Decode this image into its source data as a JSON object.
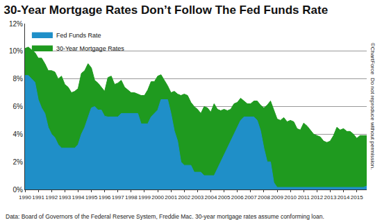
{
  "chart_data": {
    "type": "area",
    "title": "30-Year Mortgage Rates Don’t Follow The Fed Funds Rate",
    "annotations": [
      "Data: Board of Governors of the Federal Reserve System, Freddie Mac. 30-year mortgage rates assume conforming loan.",
      "©ChartForce  Do not reproduce without permission."
    ],
    "x": [
      1990,
      1990.25,
      1990.5,
      1990.75,
      1991,
      1991.25,
      1991.5,
      1991.75,
      1992,
      1992.25,
      1992.5,
      1992.75,
      1993,
      1993.25,
      1993.5,
      1993.75,
      1994,
      1994.25,
      1994.5,
      1994.75,
      1995,
      1995.25,
      1995.5,
      1995.75,
      1996,
      1996.25,
      1996.5,
      1996.75,
      1997,
      1997.25,
      1997.5,
      1997.75,
      1998,
      1998.25,
      1998.5,
      1998.75,
      1999,
      1999.25,
      1999.5,
      1999.75,
      2000,
      2000.25,
      2000.5,
      2000.75,
      2001,
      2001.25,
      2001.5,
      2001.75,
      2002,
      2002.25,
      2002.5,
      2002.75,
      2003,
      2003.25,
      2003.5,
      2003.75,
      2004,
      2004.25,
      2004.5,
      2004.75,
      2005,
      2005.25,
      2005.5,
      2005.75,
      2006,
      2006.25,
      2006.5,
      2006.75,
      2007,
      2007.25,
      2007.5,
      2007.75,
      2008,
      2008.25,
      2008.5,
      2008.75,
      2009,
      2009.25,
      2009.5,
      2009.75,
      2010,
      2010.25,
      2010.5,
      2010.75,
      2011,
      2011.25,
      2011.5,
      2011.75,
      2012,
      2012.25,
      2012.5,
      2012.75,
      2013,
      2013.25,
      2013.5,
      2013.75,
      2014,
      2014.25,
      2014.5,
      2014.75,
      2015,
      2015.25,
      2015.5,
      2015.75
    ],
    "series": [
      {
        "name": "30-Year Mortgage Rates",
        "color": "#1f9a1f",
        "values": [
          10.2,
          10.3,
          10.1,
          9.9,
          9.5,
          9.5,
          9.1,
          8.6,
          8.6,
          8.5,
          8.0,
          8.2,
          7.6,
          7.4,
          7.0,
          7.1,
          7.3,
          8.4,
          8.6,
          9.1,
          8.8,
          7.9,
          7.7,
          7.4,
          7.1,
          8.1,
          8.2,
          7.6,
          7.7,
          7.9,
          7.4,
          7.2,
          7.0,
          7.0,
          6.9,
          6.8,
          6.8,
          7.2,
          7.8,
          7.8,
          8.2,
          8.3,
          7.9,
          7.5,
          7.0,
          7.1,
          6.9,
          6.8,
          6.9,
          6.8,
          6.3,
          6.0,
          5.8,
          5.5,
          6.0,
          5.9,
          5.6,
          6.2,
          5.8,
          5.7,
          5.8,
          5.7,
          5.8,
          6.2,
          6.3,
          6.6,
          6.4,
          6.2,
          6.2,
          6.4,
          6.4,
          6.1,
          5.9,
          6.1,
          6.4,
          5.8,
          5.1,
          5.0,
          5.2,
          4.9,
          5.0,
          4.9,
          4.4,
          4.3,
          4.8,
          4.6,
          4.3,
          4.0,
          3.9,
          3.8,
          3.5,
          3.4,
          3.5,
          3.9,
          4.5,
          4.3,
          4.4,
          4.2,
          4.2,
          4.0,
          3.7,
          3.9,
          3.9,
          3.9
        ]
      },
      {
        "name": "Fed Funds Rate",
        "color": "#1f8fc8",
        "values": [
          8.25,
          8.25,
          8.0,
          7.75,
          6.5,
          5.9,
          5.5,
          4.5,
          4.0,
          3.75,
          3.25,
          3.0,
          3.0,
          3.0,
          3.0,
          3.0,
          3.25,
          4.0,
          4.5,
          5.25,
          5.9,
          6.0,
          5.75,
          5.75,
          5.3,
          5.25,
          5.25,
          5.25,
          5.25,
          5.5,
          5.5,
          5.5,
          5.5,
          5.5,
          5.5,
          4.75,
          4.75,
          4.75,
          5.25,
          5.5,
          5.75,
          6.5,
          6.5,
          6.5,
          5.5,
          4.25,
          3.5,
          2.0,
          1.75,
          1.75,
          1.75,
          1.25,
          1.25,
          1.25,
          1.0,
          1.0,
          1.0,
          1.0,
          1.5,
          2.0,
          2.5,
          3.0,
          3.5,
          4.0,
          4.5,
          5.0,
          5.25,
          5.25,
          5.25,
          5.25,
          5.0,
          4.25,
          3.0,
          2.0,
          2.0,
          0.5,
          0.15,
          0.15,
          0.15,
          0.15,
          0.15,
          0.15,
          0.15,
          0.15,
          0.15,
          0.15,
          0.15,
          0.15,
          0.15,
          0.15,
          0.15,
          0.15,
          0.15,
          0.15,
          0.15,
          0.15,
          0.15,
          0.15,
          0.15,
          0.15,
          0.15,
          0.15,
          0.15,
          0.25
        ]
      }
    ],
    "xlim": [
      1990,
      2015.75
    ],
    "xticks": [
      1990,
      1991,
      1992,
      1993,
      1994,
      1995,
      1996,
      1997,
      1998,
      1999,
      2000,
      2001,
      2002,
      2003,
      2004,
      2005,
      2006,
      2007,
      2008,
      2009,
      2010,
      2011,
      2012,
      2013,
      2014,
      2015
    ],
    "ylim": [
      0,
      12
    ],
    "yticks": [
      {
        "value": 0,
        "label": "0%"
      },
      {
        "value": 2,
        "label": "2%"
      },
      {
        "value": 4,
        "label": "4%"
      },
      {
        "value": 6,
        "label": "6%"
      },
      {
        "value": 8,
        "label": "8%"
      },
      {
        "value": 10,
        "label": "10%"
      },
      {
        "value": 12,
        "label": "12%"
      }
    ],
    "grid": true,
    "legend": "top left"
  }
}
